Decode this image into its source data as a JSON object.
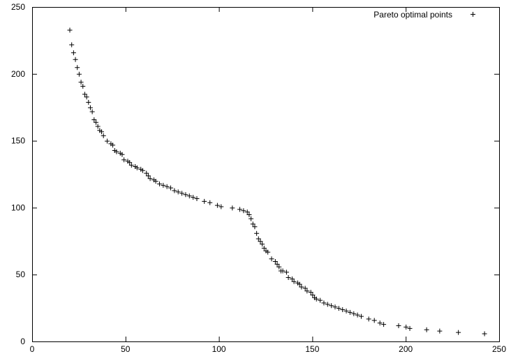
{
  "chart_data": {
    "type": "scatter",
    "title": "",
    "xlabel": "",
    "ylabel": "",
    "xlim": [
      0,
      250
    ],
    "ylim": [
      0,
      250
    ],
    "x_ticks": [
      0,
      50,
      100,
      150,
      200,
      250
    ],
    "y_ticks": [
      0,
      50,
      100,
      150,
      200,
      250
    ],
    "grid": false,
    "legend_position": "top-right",
    "marker": "plus",
    "color": "#000000",
    "series": [
      {
        "name": "Pareto optimal points",
        "points": [
          [
            20,
            233
          ],
          [
            21,
            222
          ],
          [
            22,
            216
          ],
          [
            23,
            211
          ],
          [
            24,
            205
          ],
          [
            25,
            200
          ],
          [
            26,
            194
          ],
          [
            27,
            191
          ],
          [
            28,
            185
          ],
          [
            29,
            183
          ],
          [
            30,
            179
          ],
          [
            31,
            175
          ],
          [
            32,
            172
          ],
          [
            33,
            166
          ],
          [
            34,
            164
          ],
          [
            35,
            161
          ],
          [
            36,
            158
          ],
          [
            37,
            157
          ],
          [
            38,
            154
          ],
          [
            40,
            150
          ],
          [
            42,
            148
          ],
          [
            43,
            147
          ],
          [
            44,
            143
          ],
          [
            45,
            142
          ],
          [
            47,
            141
          ],
          [
            48,
            140
          ],
          [
            49,
            136
          ],
          [
            51,
            135
          ],
          [
            52,
            134
          ],
          [
            53,
            132
          ],
          [
            55,
            131
          ],
          [
            56,
            130
          ],
          [
            58,
            129
          ],
          [
            59,
            128
          ],
          [
            61,
            126
          ],
          [
            62,
            124
          ],
          [
            63,
            122
          ],
          [
            65,
            121
          ],
          [
            66,
            120
          ],
          [
            68,
            118
          ],
          [
            70,
            117
          ],
          [
            72,
            116
          ],
          [
            74,
            115
          ],
          [
            76,
            113
          ],
          [
            78,
            112
          ],
          [
            80,
            111
          ],
          [
            82,
            110
          ],
          [
            84,
            109
          ],
          [
            86,
            108
          ],
          [
            88,
            107
          ],
          [
            92,
            105
          ],
          [
            95,
            104
          ],
          [
            99,
            102
          ],
          [
            101,
            101
          ],
          [
            107,
            100
          ],
          [
            111,
            99
          ],
          [
            113,
            98
          ],
          [
            115,
            97
          ],
          [
            116,
            95
          ],
          [
            117,
            92
          ],
          [
            118,
            88
          ],
          [
            119,
            86
          ],
          [
            120,
            81
          ],
          [
            121,
            77
          ],
          [
            122,
            75
          ],
          [
            123,
            73
          ],
          [
            124,
            70
          ],
          [
            125,
            68
          ],
          [
            126,
            67
          ],
          [
            128,
            62
          ],
          [
            130,
            60
          ],
          [
            131,
            58
          ],
          [
            132,
            56
          ],
          [
            133,
            53
          ],
          [
            134,
            53
          ],
          [
            136,
            52
          ],
          [
            137,
            48
          ],
          [
            139,
            47
          ],
          [
            140,
            45
          ],
          [
            142,
            44
          ],
          [
            143,
            43
          ],
          [
            144,
            41
          ],
          [
            146,
            40
          ],
          [
            147,
            38
          ],
          [
            149,
            37
          ],
          [
            150,
            35
          ],
          [
            151,
            33
          ],
          [
            152,
            32
          ],
          [
            154,
            31
          ],
          [
            156,
            29
          ],
          [
            158,
            28
          ],
          [
            160,
            27
          ],
          [
            162,
            26
          ],
          [
            164,
            25
          ],
          [
            166,
            24
          ],
          [
            168,
            23
          ],
          [
            170,
            22
          ],
          [
            172,
            21
          ],
          [
            174,
            20
          ],
          [
            176,
            19
          ],
          [
            180,
            17
          ],
          [
            183,
            16
          ],
          [
            186,
            14
          ],
          [
            188,
            13
          ],
          [
            196,
            12
          ],
          [
            200,
            11
          ],
          [
            202,
            10
          ],
          [
            211,
            9
          ],
          [
            218,
            8
          ],
          [
            228,
            7
          ],
          [
            242,
            6
          ]
        ]
      }
    ]
  }
}
